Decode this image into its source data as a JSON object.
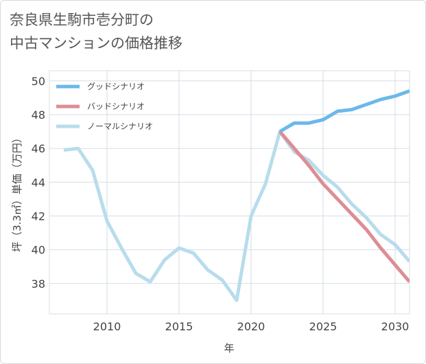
{
  "chart_data": {
    "type": "line",
    "title_lines": [
      "奈良県生駒市壱分町の",
      "中古マンションの価格推移"
    ],
    "xlabel": "年",
    "ylabel": "坪（3.3㎡）単価（万円）",
    "xlim": [
      2006,
      2031
    ],
    "ylim": [
      36.2,
      50.6
    ],
    "x_ticks": [
      2010,
      2015,
      2020,
      2025,
      2030
    ],
    "y_ticks": [
      38,
      40,
      42,
      44,
      46,
      48,
      50
    ],
    "grid": true,
    "legend_position": "top-left",
    "series": [
      {
        "name": "グッドシナリオ",
        "color": "#6cb8ea",
        "x": [
          2022,
          2023,
          2024,
          2025,
          2026,
          2027,
          2028,
          2029,
          2030,
          2031
        ],
        "y": [
          47.0,
          47.5,
          47.5,
          47.7,
          48.2,
          48.3,
          48.6,
          48.9,
          49.1,
          49.4
        ]
      },
      {
        "name": "バッドシナリオ",
        "color": "#dd8d93",
        "x": [
          2022,
          2023,
          2024,
          2025,
          2026,
          2027,
          2028,
          2029,
          2030,
          2031
        ],
        "y": [
          47.0,
          46.0,
          45.0,
          43.9,
          43.0,
          42.1,
          41.2,
          40.1,
          39.1,
          38.1
        ]
      },
      {
        "name": "ノーマルシナリオ",
        "color": "#b8dcec",
        "x": [
          2007,
          2008,
          2009,
          2010,
          2011,
          2012,
          2013,
          2014,
          2015,
          2016,
          2017,
          2018,
          2019,
          2020,
          2021,
          2022,
          2023,
          2024,
          2025,
          2026,
          2027,
          2028,
          2029,
          2030,
          2031
        ],
        "y": [
          45.9,
          46.0,
          44.7,
          41.7,
          40.1,
          38.6,
          38.1,
          39.4,
          40.1,
          39.8,
          38.8,
          38.2,
          37.0,
          42.0,
          43.9,
          47.0,
          45.8,
          45.3,
          44.4,
          43.7,
          42.7,
          41.9,
          40.9,
          40.3,
          39.3
        ]
      }
    ]
  }
}
